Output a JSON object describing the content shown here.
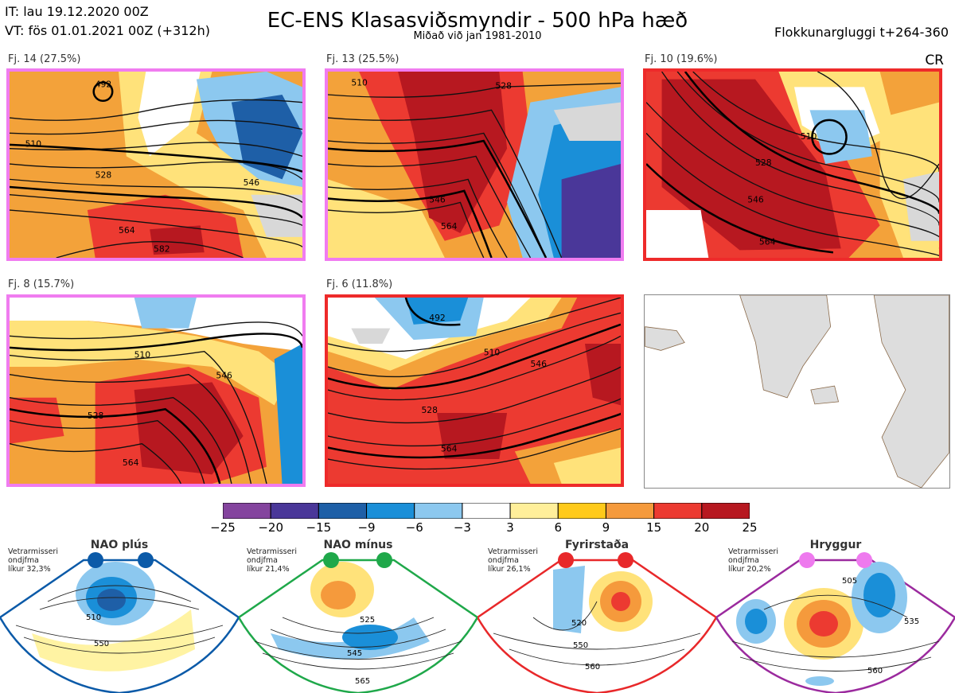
{
  "header": {
    "it": "IT: lau 19.12.2020 00Z",
    "vt": "VT: fös 01.01.2021 00Z  (+312h)",
    "title": "EC-ENS Klasasviðsmyndir - 500 hPa hæð",
    "subtitle": "Miðað við jan 1981-2010",
    "window": "Flokkunargluggi t+264-360",
    "regime_code": "CR"
  },
  "chart_data": [
    {
      "type": "heatmap",
      "title": "Fj. 14 (27.5%)",
      "cluster": 14,
      "percent": 27.5,
      "border_color": "#f07cf0",
      "contour_labels": [
        "492",
        "510",
        "528",
        "546",
        "564",
        "582"
      ]
    },
    {
      "type": "heatmap",
      "title": "Fj. 13 (25.5%)",
      "cluster": 13,
      "percent": 25.5,
      "border_color": "#f07cf0",
      "contour_labels": [
        "510",
        "528",
        "546",
        "564"
      ]
    },
    {
      "type": "heatmap",
      "title": "Fj. 10 (19.6%)",
      "cluster": 10,
      "percent": 19.6,
      "border_color": "#ee2a2a",
      "contour_labels": [
        "510",
        "528",
        "546",
        "564"
      ]
    },
    {
      "type": "heatmap",
      "title": "Fj. 8 (15.7%)",
      "cluster": 8,
      "percent": 15.7,
      "border_color": "#f07cf0",
      "contour_labels": [
        "510",
        "528",
        "546",
        "564"
      ]
    },
    {
      "type": "heatmap",
      "title": "Fj. 6 (11.8%)",
      "cluster": 6,
      "percent": 11.8,
      "border_color": "#ee2a2a",
      "contour_labels": [
        "492",
        "510",
        "528",
        "546",
        "564"
      ]
    }
  ],
  "colorbar": {
    "ticks": [
      "−25",
      "−20",
      "−15",
      "−9",
      "−6",
      "−3",
      "3",
      "6",
      "9",
      "15",
      "20",
      "25"
    ],
    "colors": [
      "#84449e",
      "#4a3799",
      "#1e5fa7",
      "#1a8fd8",
      "#8cc8ef",
      "#ffffff",
      "#ffef9a",
      "#ffca1a",
      "#f59a3c",
      "#ec3a31",
      "#b71820"
    ]
  },
  "regimes": [
    {
      "name": "NAO plús",
      "stat_line1": "Vetrarmisseri",
      "stat_line2": "ondjfma",
      "stat_line3": "líkur 32,3%",
      "color": "#0b5aa8",
      "labels": [
        "510",
        "550"
      ]
    },
    {
      "name": "NAO mínus",
      "stat_line1": "Vetrarmisseri",
      "stat_line2": "ondjfma",
      "stat_line3": "líkur 21,4%",
      "color": "#1fa84a",
      "labels": [
        "525",
        "545",
        "565"
      ]
    },
    {
      "name": "Fyrirstaða",
      "stat_line1": "Vetrarmisseri",
      "stat_line2": "ondjfma",
      "stat_line3": "líkur 26,1%",
      "color": "#e8282a",
      "labels": [
        "520",
        "550",
        "560"
      ]
    },
    {
      "name": "Hryggur",
      "stat_line1": "Vetrarmisseri",
      "stat_line2": "ondjfma",
      "stat_line3": "líkur 20,2%",
      "color": "#9b2a9e",
      "labels": [
        "505",
        "535",
        "560"
      ]
    }
  ]
}
